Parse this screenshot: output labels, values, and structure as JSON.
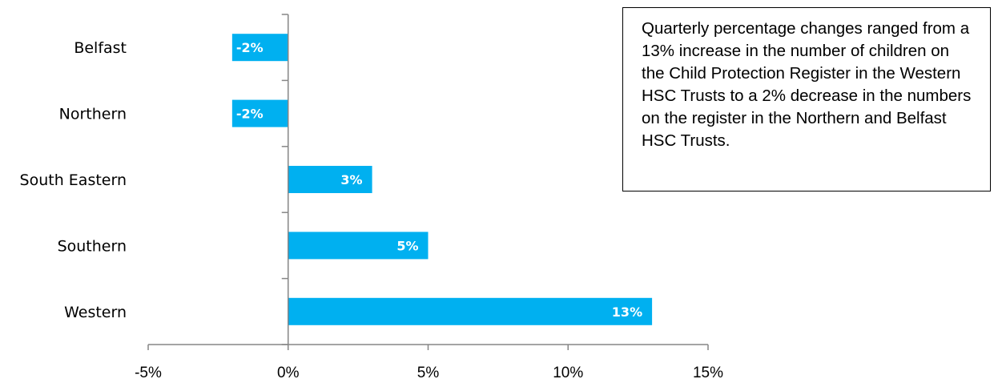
{
  "chart_data": {
    "type": "bar",
    "orientation": "horizontal",
    "categories": [
      "Belfast",
      "Northern",
      "South Eastern",
      "Southern",
      "Western"
    ],
    "values": [
      -2,
      -2,
      3,
      5,
      13
    ],
    "data_labels": [
      "-2%",
      "-2%",
      "3%",
      "5%",
      "13%"
    ],
    "xlim": [
      -5,
      15
    ],
    "x_ticks": [
      -5,
      0,
      5,
      10,
      15
    ],
    "x_tick_labels": [
      "-5%",
      "0%",
      "5%",
      "10%",
      "15%"
    ],
    "bar_color": "#00B0F0",
    "grid": false,
    "legend": "none"
  },
  "annotation": {
    "text": "Quarterly percentage changes ranged from a 13% increase in the number of children on the Child Protection Register in the Western HSC Trusts to a 2% decrease in the numbers on the register in the Northern and Belfast HSC Trusts."
  }
}
